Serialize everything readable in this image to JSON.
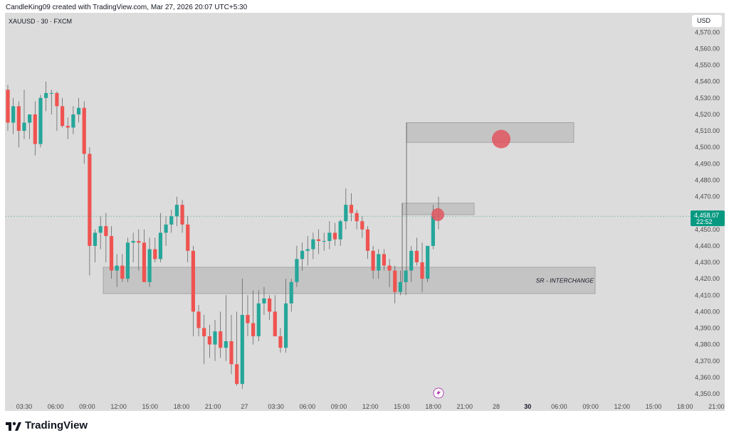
{
  "header": {
    "text": "CandleKing09 created with TradingView.com, Mar 27, 2026 20:07 UTC+5:30"
  },
  "symbol": {
    "label": "XAUUSD · 30 · FXCM"
  },
  "currency": "USD",
  "last_price": {
    "value": "4,458.07",
    "countdown": "22:52",
    "color": "#089981"
  },
  "zone": {
    "label": "SR - INTERCHANGE"
  },
  "footer": {
    "brand": "TradingView"
  },
  "colors": {
    "up": "#26a69a",
    "down": "#ef5350",
    "background": "#dcdcdc",
    "zone": "#c4c4c4",
    "marker": "#e0555f"
  },
  "icons": {
    "lightning": "lightning-icon",
    "logo": "tradingview-logo-icon"
  },
  "chart_data": {
    "type": "candlestick",
    "symbol": "XAUUSD",
    "timeframe": "30",
    "ylim": [
      4342,
      4576
    ],
    "y_ticks": [
      "4,570.00",
      "4,560.00",
      "4,550.00",
      "4,540.00",
      "4,530.00",
      "4,520.00",
      "4,510.00",
      "4,500.00",
      "4,490.00",
      "4,480.00",
      "4,470.00",
      "4,460.00",
      "4,450.00",
      "4,440.00",
      "4,430.00",
      "4,420.00",
      "4,410.00",
      "4,400.00",
      "4,390.00",
      "4,380.00",
      "4,370.00",
      "4,360.00",
      "4,350.00"
    ],
    "x_ticks": [
      "03:30",
      "06:00",
      "09:00",
      "12:00",
      "15:00",
      "18:00",
      "21:00",
      "27",
      "03:30",
      "06:00",
      "09:00",
      "12:00",
      "15:00",
      "18:00",
      "21:00",
      "28",
      "30",
      "06:00",
      "09:00",
      "12:00",
      "15:00",
      "18:00",
      "21:00"
    ],
    "bold_x_ticks": [
      "30"
    ],
    "candles": [
      [
        4535,
        4538,
        4510,
        4515
      ],
      [
        4515,
        4530,
        4508,
        4525
      ],
      [
        4525,
        4528,
        4500,
        4510
      ],
      [
        4510,
        4535,
        4505,
        4515
      ],
      [
        4515,
        4520,
        4505,
        4520
      ],
      [
        4520,
        4528,
        4495,
        4502
      ],
      [
        4502,
        4532,
        4500,
        4530
      ],
      [
        4530,
        4540,
        4522,
        4533
      ],
      [
        4533,
        4535,
        4520,
        4533
      ],
      [
        4533,
        4534,
        4510,
        4525
      ],
      [
        4525,
        4530,
        4512,
        4513
      ],
      [
        4513,
        4518,
        4505,
        4512
      ],
      [
        4512,
        4525,
        4508,
        4520
      ],
      [
        4520,
        4530,
        4515,
        4524
      ],
      [
        4524,
        4528,
        4490,
        4496
      ],
      [
        4496,
        4500,
        4422,
        4440
      ],
      [
        4440,
        4450,
        4430,
        4448
      ],
      [
        4448,
        4458,
        4438,
        4452
      ],
      [
        4452,
        4460,
        4430,
        4446
      ],
      [
        4446,
        4452,
        4420,
        4425
      ],
      [
        4425,
        4435,
        4415,
        4428
      ],
      [
        4428,
        4435,
        4418,
        4420
      ],
      [
        4420,
        4445,
        4418,
        4442
      ],
      [
        4442,
        4448,
        4430,
        4443
      ],
      [
        4443,
        4450,
        4425,
        4442
      ],
      [
        4442,
        4450,
        4420,
        4418
      ],
      [
        4418,
        4445,
        4415,
        4438
      ],
      [
        4438,
        4445,
        4430,
        4432
      ],
      [
        4432,
        4460,
        4430,
        4448
      ],
      [
        4448,
        4458,
        4440,
        4453
      ],
      [
        4453,
        4462,
        4448,
        4458
      ],
      [
        4458,
        4470,
        4452,
        4465
      ],
      [
        4465,
        4468,
        4448,
        4453
      ],
      [
        4453,
        4458,
        4430,
        4437
      ],
      [
        4437,
        4440,
        4385,
        4400
      ],
      [
        4400,
        4404,
        4385,
        4390
      ],
      [
        4390,
        4398,
        4368,
        4385
      ],
      [
        4385,
        4392,
        4372,
        4380
      ],
      [
        4380,
        4395,
        4370,
        4388
      ],
      [
        4388,
        4400,
        4372,
        4378
      ],
      [
        4378,
        4410,
        4370,
        4382
      ],
      [
        4382,
        4398,
        4362,
        4368
      ],
      [
        4368,
        4400,
        4355,
        4356
      ],
      [
        4356,
        4420,
        4353,
        4398
      ],
      [
        4398,
        4410,
        4385,
        4393
      ],
      [
        4393,
        4413,
        4380,
        4385
      ],
      [
        4385,
        4413,
        4382,
        4405
      ],
      [
        4405,
        4415,
        4398,
        4408
      ],
      [
        4408,
        4410,
        4395,
        4400
      ],
      [
        4400,
        4410,
        4385,
        4385
      ],
      [
        4385,
        4390,
        4375,
        4378
      ],
      [
        4378,
        4420,
        4375,
        4405
      ],
      [
        4405,
        4420,
        4400,
        4418
      ],
      [
        4418,
        4440,
        4415,
        4432
      ],
      [
        4432,
        4442,
        4425,
        4437
      ],
      [
        4437,
        4446,
        4428,
        4438
      ],
      [
        4438,
        4448,
        4432,
        4444
      ],
      [
        4444,
        4450,
        4435,
        4443
      ],
      [
        4443,
        4448,
        4437,
        4443
      ],
      [
        4443,
        4455,
        4438,
        4448
      ],
      [
        4448,
        4454,
        4440,
        4444
      ],
      [
        4444,
        4456,
        4440,
        4455
      ],
      [
        4455,
        4475,
        4450,
        4465
      ],
      [
        4465,
        4472,
        4455,
        4460
      ],
      [
        4460,
        4462,
        4450,
        4455
      ],
      [
        4455,
        4458,
        4445,
        4450
      ],
      [
        4450,
        4452,
        4432,
        4437
      ],
      [
        4437,
        4440,
        4420,
        4425
      ],
      [
        4425,
        4438,
        4420,
        4435
      ],
      [
        4435,
        4438,
        4425,
        4428
      ],
      [
        4428,
        4432,
        4415,
        4425
      ],
      [
        4425,
        4428,
        4405,
        4412
      ],
      [
        4412,
        4425,
        4410,
        4418
      ],
      [
        4418,
        4425,
        4410,
        4425
      ],
      [
        4425,
        4440,
        4418,
        4437
      ],
      [
        4437,
        4445,
        4428,
        4430
      ],
      [
        4430,
        4442,
        4412,
        4420
      ],
      [
        4420,
        4440,
        4418,
        4440
      ],
      [
        4440,
        4465,
        4438,
        4458
      ],
      [
        4458,
        4470,
        4450,
        4458
      ]
    ],
    "zones": [
      {
        "label": "SR - INTERCHANGE",
        "top": 4427,
        "bottom": 4411
      },
      {
        "label": "",
        "top": 4515,
        "bottom": 4503
      },
      {
        "label": "",
        "top": 4466,
        "bottom": 4459
      }
    ],
    "markers": [
      {
        "price": 4505
      },
      {
        "price": 4459
      }
    ],
    "last_price": 4458.07,
    "grid": false
  }
}
